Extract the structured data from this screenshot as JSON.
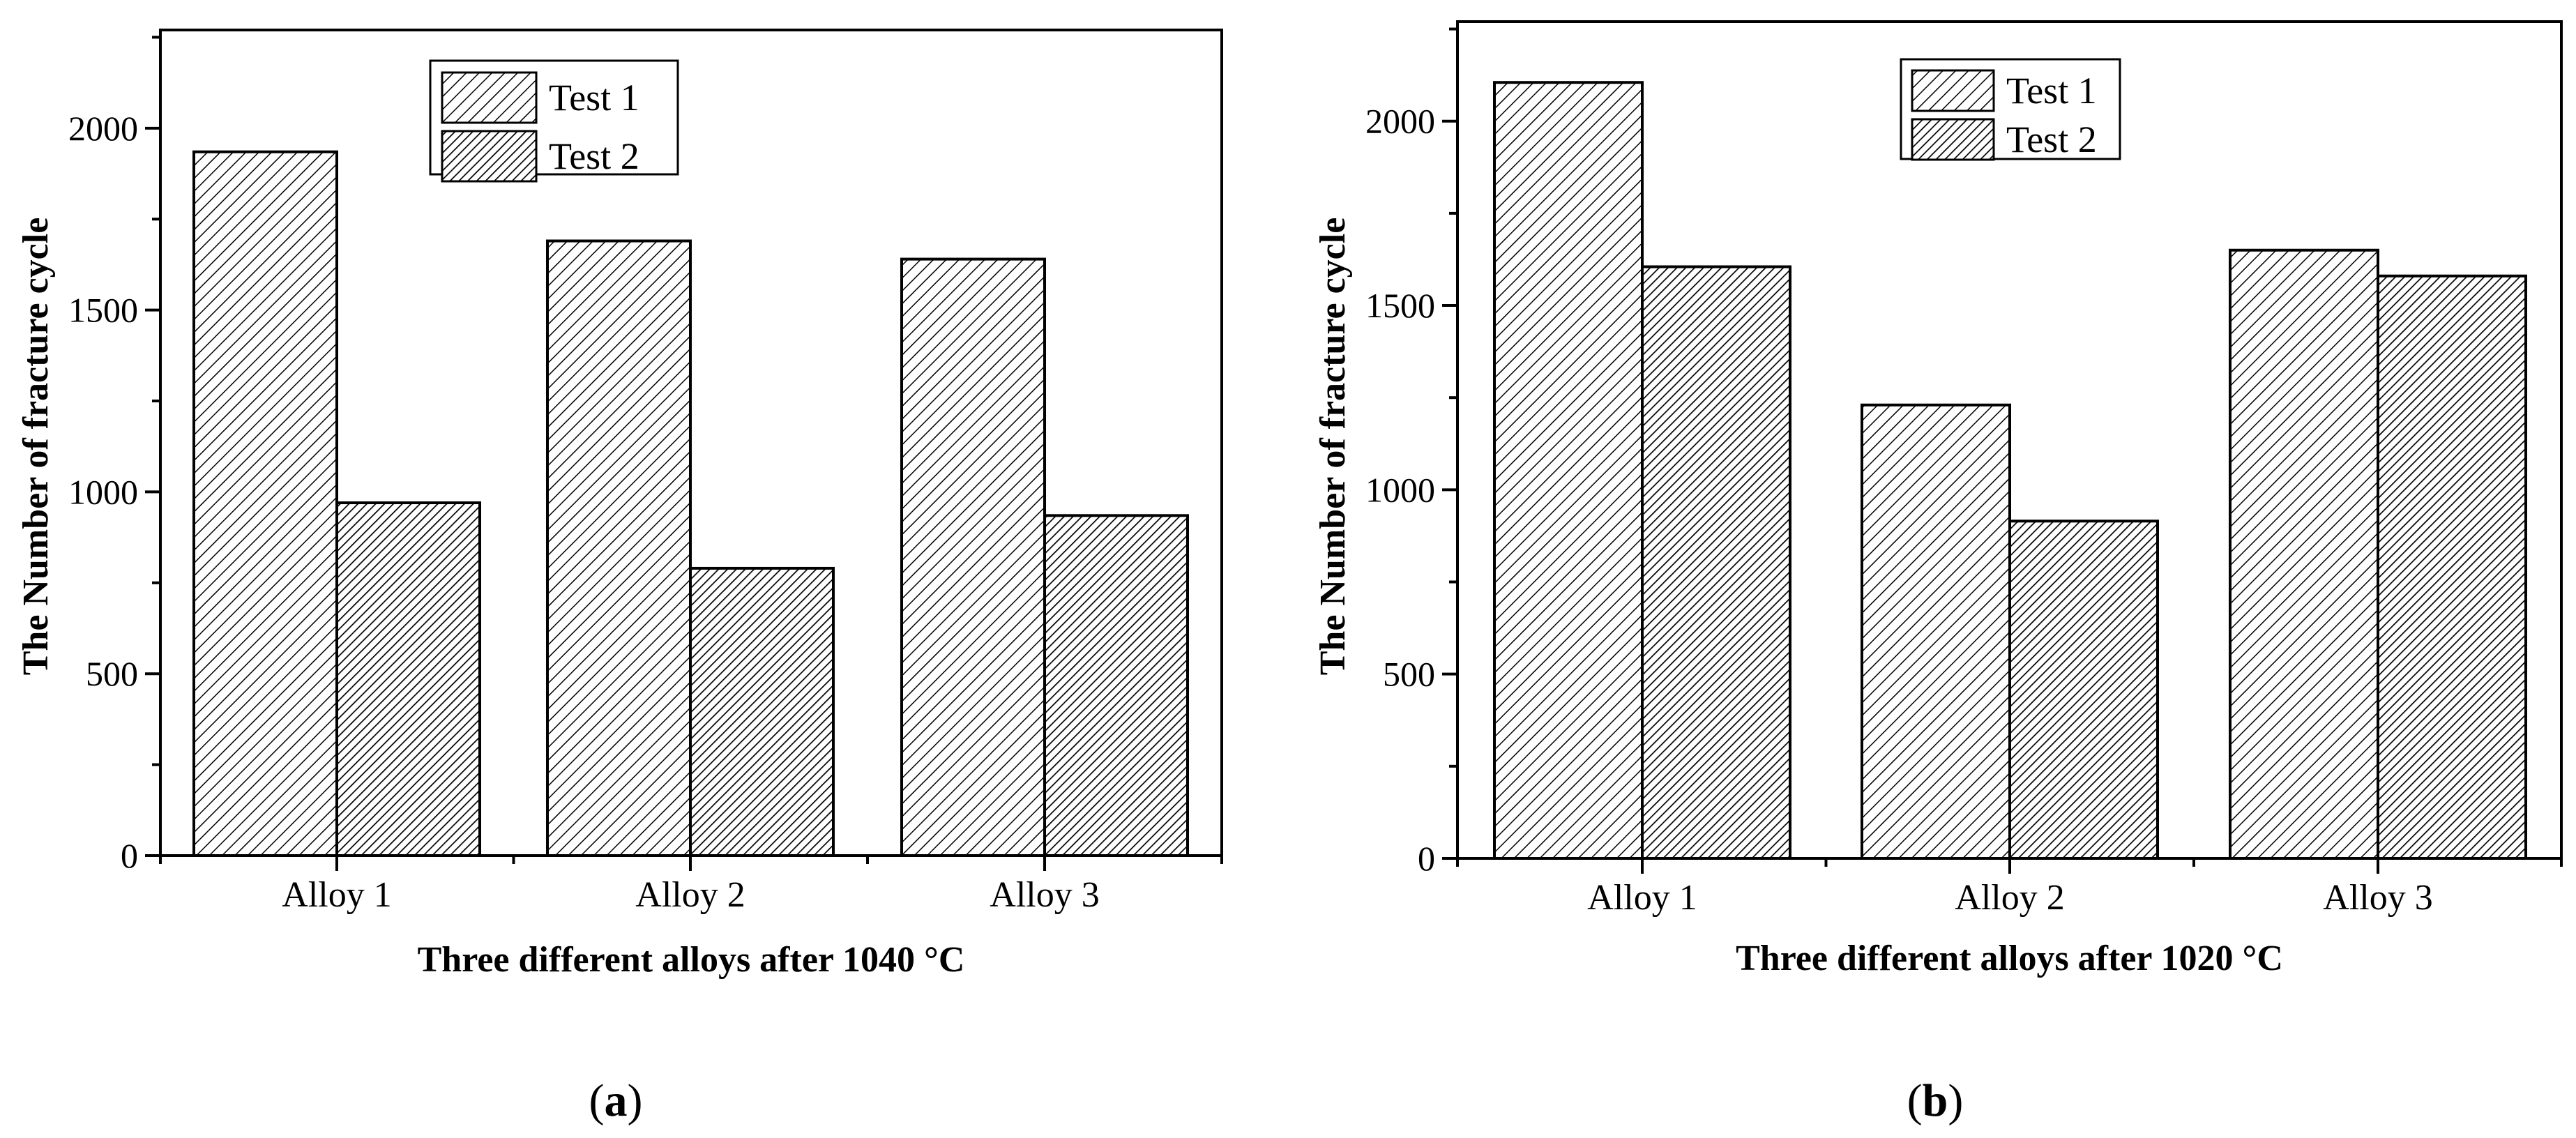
{
  "chart_data": [
    {
      "type": "bar",
      "panel_label": "a",
      "categories": [
        "Alloy 1",
        "Alloy 2",
        "Alloy 3"
      ],
      "series": [
        {
          "name": "Test 1",
          "values": [
            1935,
            1690,
            1640
          ],
          "pattern": "sparse-hatch"
        },
        {
          "name": "Test 2",
          "values": [
            970,
            790,
            935
          ],
          "pattern": "dense-hatch"
        }
      ],
      "xlabel": "Three different alloys after 1040 °C",
      "ylabel": "The Number of fracture cycle",
      "ylim": [
        0,
        2270
      ],
      "yticks": [
        0,
        500,
        1000,
        1500,
        2000
      ],
      "legend_position": "top-center",
      "grid": false
    },
    {
      "type": "bar",
      "panel_label": "b",
      "categories": [
        "Alloy 1",
        "Alloy 2",
        "Alloy 3"
      ],
      "series": [
        {
          "name": "Test 1",
          "values": [
            2105,
            1230,
            1650
          ],
          "pattern": "sparse-hatch"
        },
        {
          "name": "Test 2",
          "values": [
            1605,
            915,
            1580
          ],
          "pattern": "dense-hatch"
        }
      ],
      "xlabel": "Three different alloys after 1020 °C",
      "ylabel": "The Number of fracture cycle",
      "ylim": [
        0,
        2270
      ],
      "yticks": [
        0,
        500,
        1000,
        1500,
        2000
      ],
      "legend_position": "top-center",
      "grid": false
    }
  ]
}
